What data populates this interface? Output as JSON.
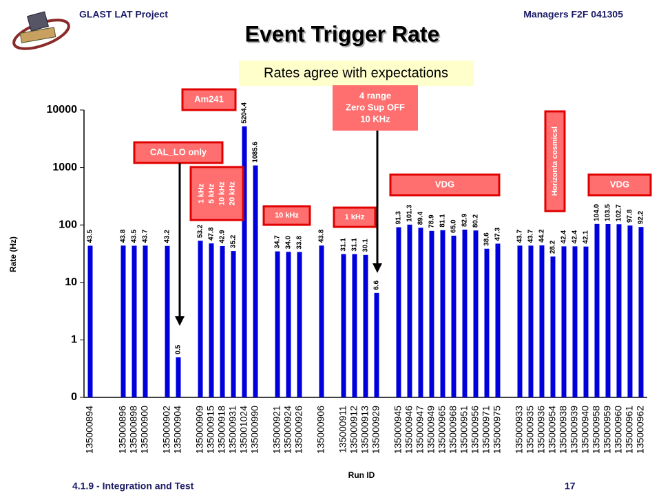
{
  "header": {
    "left": "GLAST LAT Project",
    "right": "Managers F2F 041305",
    "title": "Event Trigger Rate"
  },
  "callout": "Rates agree with expectations",
  "footer": {
    "left": "4.1.9 - Integration and Test",
    "page": "17"
  },
  "chart_data": {
    "type": "bar",
    "y_label": "Rate (Hz)",
    "x_label": "Run ID",
    "log_scale": true,
    "color": "#0000dd",
    "ylim": [
      0.1,
      10000
    ],
    "yticks": [
      {
        "value": 0.1,
        "label": "0"
      },
      1,
      10,
      100,
      1000,
      10000
    ],
    "categories": [
      "135000894",
      null,
      null,
      "135000896",
      "135000898",
      "135000900",
      null,
      "135000902",
      "135000904",
      null,
      "135000909",
      "135000915",
      "135000918",
      "135000931",
      "135001024",
      "135000990",
      null,
      "135000921",
      "135000924",
      "135000926",
      null,
      "135000906",
      null,
      "135000911",
      "135000912",
      "135000913",
      "135000929",
      null,
      "135000945",
      "135000946",
      "135000947",
      "135000949",
      "135000965",
      "135000968",
      "135000951",
      "135000956",
      "135000971",
      "135000975",
      null,
      "135000933",
      "135000935",
      "135000936",
      "135000954",
      "135000938",
      "135000939",
      "135000940",
      "135000958",
      "135000959",
      "135000960",
      "135000961",
      "135000962"
    ],
    "values": [
      43.5,
      null,
      null,
      43.8,
      43.5,
      43.7,
      null,
      43.2,
      0.5,
      null,
      53.2,
      47.8,
      42.9,
      35.2,
      5204.4,
      1085.6,
      null,
      34.7,
      34.0,
      33.8,
      null,
      43.8,
      null,
      31.1,
      31.1,
      30.1,
      6.6,
      null,
      91.3,
      101.3,
      89.4,
      78.9,
      81.1,
      65.0,
      82.9,
      80.2,
      38.6,
      47.3,
      null,
      43.7,
      43.7,
      44.2,
      28.2,
      42.4,
      42.4,
      42.1,
      104.0,
      103.5,
      102.7,
      97.8,
      92.2
    ],
    "value_labels": [
      "43.5",
      null,
      null,
      "43.8",
      "43.5",
      "43.7",
      null,
      "43.2",
      "0.5",
      null,
      "53.2",
      "47.8",
      "42.9",
      "35.2",
      "5204.4",
      "1085.6",
      null,
      "34.7",
      "34.0",
      "33.8",
      null,
      "43.8",
      null,
      "31.1",
      "31.1",
      "30.1",
      "6.6",
      null,
      "91.3",
      "101.3",
      "89.4",
      "78.9",
      "81.1",
      "65.0",
      "82.9",
      "80.2",
      "38.6",
      "47.3",
      null,
      "43.7",
      "43.7",
      "44.2",
      "28.2",
      "42.4",
      "42.4",
      "42.1",
      "104.0",
      "103.5",
      "102.7",
      "97.8",
      "92.2"
    ],
    "annotations": [
      {
        "lines": [
          "Am241"
        ]
      },
      {
        "lines": [
          "CAL_LO only"
        ]
      },
      {
        "lines": [
          "1 kHz",
          "5 kHz",
          "10 kHz",
          "20 kHz"
        ]
      },
      {
        "lines": [
          "10 kHz"
        ]
      },
      {
        "lines": [
          "1 kHz"
        ]
      },
      {
        "lines": [
          "4 range",
          "Zero Sup OFF",
          "10 KHz"
        ]
      },
      {
        "lines": [
          "VDG"
        ]
      },
      {
        "lines": [
          "Horizonta cosmicsl"
        ]
      },
      {
        "lines": [
          "VDG"
        ]
      }
    ]
  }
}
